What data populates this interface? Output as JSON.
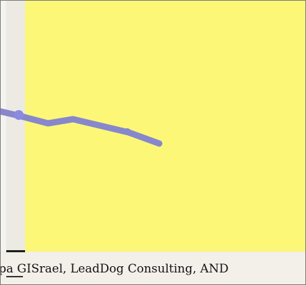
{
  "map": {
    "background_color": "#fdf777",
    "route": {
      "color": "#8787cc",
      "icon": "route-line"
    }
  },
  "attribution": {
    "text": "apa GISrael, LeadDog Consulting, AND"
  }
}
